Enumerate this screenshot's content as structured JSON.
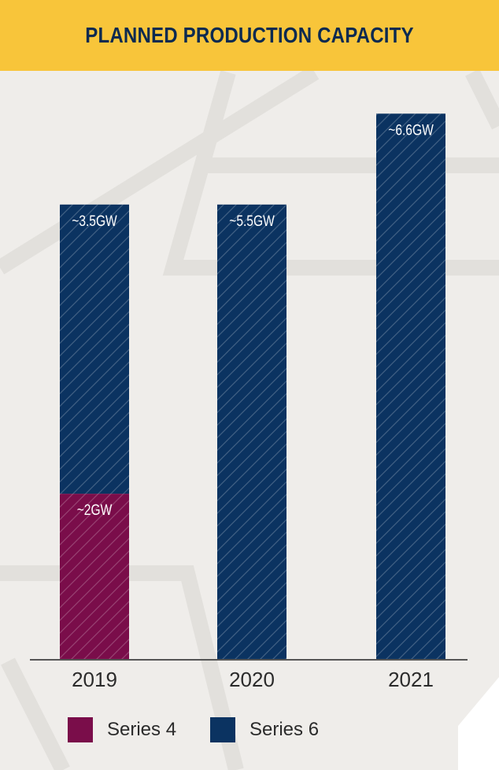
{
  "header": {
    "title": "PLANNED PRODUCTION CAPACITY"
  },
  "colors": {
    "header_bg": "#f8c53a",
    "title_text": "#0b2a50",
    "page_bg": "#efedea",
    "series4": "#7a0d4a",
    "series6": "#0b3361"
  },
  "chart_data": {
    "type": "bar",
    "stacked": true,
    "categories": [
      "2019",
      "2020",
      "2021"
    ],
    "series": [
      {
        "name": "Series 4",
        "values": [
          2,
          0,
          0
        ],
        "color": "#7a0d4a",
        "labels": [
          "~2GW",
          "",
          ""
        ]
      },
      {
        "name": "Series 6",
        "values": [
          3.5,
          5.5,
          6.6
        ],
        "color": "#0b3361",
        "labels": [
          "~3.5GW",
          "~5.5GW",
          "~6.6GW"
        ]
      }
    ],
    "unit": "GW",
    "ylim": [
      0,
      7
    ],
    "grid": false,
    "legend_position": "bottom"
  },
  "legend": [
    {
      "label": "Series 4",
      "icon": "series4-swatch",
      "color": "#7a0d4a"
    },
    {
      "label": "Series 6",
      "icon": "series6-swatch",
      "color": "#0b3361"
    }
  ]
}
